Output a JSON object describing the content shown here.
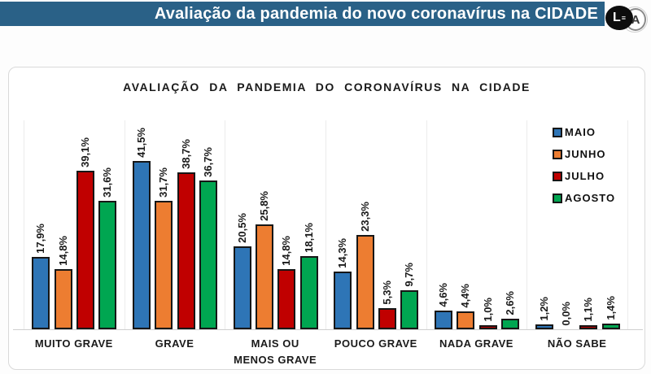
{
  "header": {
    "title": "Avaliação da pandemia do novo coronavírus na CIDADE",
    "bar_color": "#2A6187",
    "logo": {
      "letter_l": "L",
      "equals_glyph": "≡",
      "letter_a": "A"
    }
  },
  "chart_data": {
    "type": "bar",
    "title": "AVALIAÇÃO DA PANDEMIA DO CORONAVÍRUS NA CIDADE",
    "categories": [
      "MUITO GRAVE",
      "GRAVE",
      "MAIS OU\nMENOS GRAVE",
      "POUCO GRAVE",
      "NADA GRAVE",
      "NÃO SABE"
    ],
    "series": [
      {
        "name": "MAIO",
        "color": "#2E75B6",
        "values": [
          17.9,
          41.5,
          20.5,
          14.3,
          4.6,
          1.2
        ],
        "labels": [
          "17,9%",
          "41,5%",
          "20,5%",
          "14,3%",
          "4,6%",
          "1,2%"
        ]
      },
      {
        "name": "JUNHO",
        "color": "#ED7D31",
        "values": [
          14.8,
          31.7,
          25.8,
          23.3,
          4.4,
          0.0
        ],
        "labels": [
          "14,8%",
          "31,7%",
          "25,8%",
          "23,3%",
          "4,4%",
          "0,0%"
        ]
      },
      {
        "name": "JULHO",
        "color": "#C00000",
        "values": [
          39.1,
          38.7,
          14.8,
          5.3,
          1.0,
          1.1
        ],
        "labels": [
          "39,1%",
          "38,7%",
          "14,8%",
          "5,3%",
          "1,0%",
          "1,1%"
        ]
      },
      {
        "name": "AGOSTO",
        "color": "#00A651",
        "values": [
          31.6,
          36.7,
          18.1,
          9.7,
          2.6,
          1.4
        ],
        "labels": [
          "31,6%",
          "36,7%",
          "18,1%",
          "9,7%",
          "2,6%",
          "1,4%"
        ]
      }
    ],
    "ylim": [
      0,
      45
    ],
    "value_label_format": "percent-comma-decimal",
    "legend_position": "right",
    "grid": "category-separators",
    "bar_border_color": "#161616"
  }
}
